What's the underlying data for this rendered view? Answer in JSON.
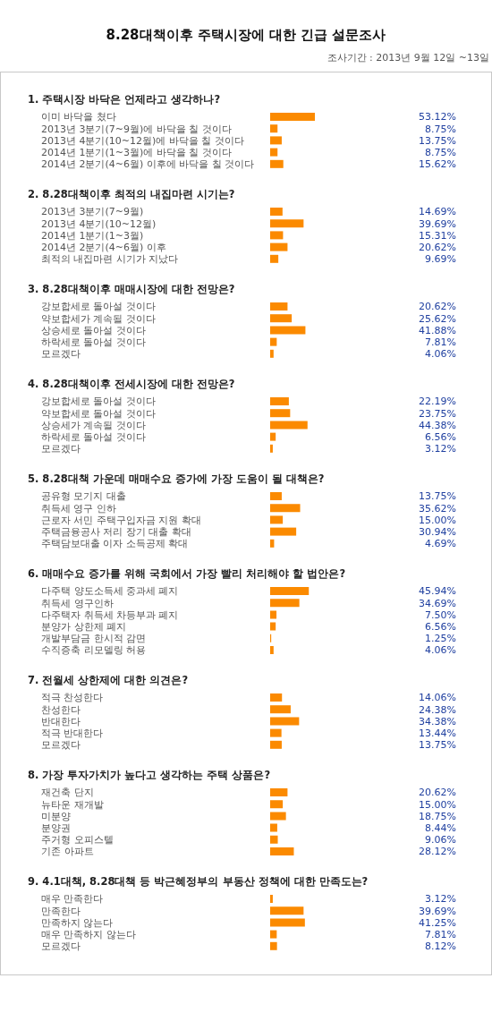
{
  "chart_data": [
    {
      "type": "other",
      "title": "8.28대책이후 주택시장에 대한 긴급 설문조사",
      "subtitle": "조사기간 : 2013년 9월 12일 ~13일"
    },
    {
      "type": "bar",
      "orientation": "horizontal",
      "title": "1. 주택시장 바닥은 언제라고 생각하나?",
      "categories": [
        "이미 바닥을 쳤다",
        "2013년 3분기(7~9월)에 바닥을 칠 것이다",
        "2013년 4분기(10~12월)에 바닥을 칠 것이다",
        "2014년 1분기(1~3월)에 바닥을 칠 것이다",
        "2014년 2분기(4~6월) 이후에 바닥을 칠 것이다"
      ],
      "values": [
        53.12,
        8.75,
        13.75,
        8.75,
        15.62
      ],
      "value_labels": [
        "53.12%",
        "8.75%",
        "13.75%",
        "8.75%",
        "15.62%"
      ],
      "color": "#fb8a00"
    },
    {
      "type": "bar",
      "orientation": "horizontal",
      "title": "2. 8.28대책이후 최적의 내집마련 시기는?",
      "categories": [
        "2013년 3분기(7~9월)",
        "2013년 4분기(10~12월)",
        "2014년 1분기(1~3월)",
        "2014년 2분기(4~6월) 이후",
        "최적의 내집마련 시기가 지났다"
      ],
      "values": [
        14.69,
        39.69,
        15.31,
        20.62,
        9.69
      ],
      "value_labels": [
        "14.69%",
        "39.69%",
        "15.31%",
        "20.62%",
        "9.69%"
      ],
      "color": "#fb8a00"
    },
    {
      "type": "bar",
      "orientation": "horizontal",
      "title": "3. 8.28대책이후 매매시장에 대한 전망은?",
      "categories": [
        "강보합세로 돌아설 것이다",
        "약보합세가 계속될 것이다",
        "상승세로 돌아설 것이다",
        "하락세로 돌아설 것이다",
        "모르겠다"
      ],
      "values": [
        20.62,
        25.62,
        41.88,
        7.81,
        4.06
      ],
      "value_labels": [
        "20.62%",
        "25.62%",
        "41.88%",
        "7.81%",
        "4.06%"
      ],
      "color": "#fb8a00"
    },
    {
      "type": "bar",
      "orientation": "horizontal",
      "title": "4. 8.28대책이후 전세시장에 대한 전망은?",
      "categories": [
        "강보합세로 돌아설 것이다",
        "약보합세로 돌아설 것이다",
        "상승세가 계속될 것이다",
        "하락세로 돌아설 것이다",
        "모르겠다"
      ],
      "values": [
        22.19,
        23.75,
        44.38,
        6.56,
        3.12
      ],
      "value_labels": [
        "22.19%",
        "23.75%",
        "44.38%",
        "6.56%",
        "3.12%"
      ],
      "color": "#fb8a00"
    },
    {
      "type": "bar",
      "orientation": "horizontal",
      "title": "5. 8.28대책 가운데 매매수요 증가에 가장 도움이 될 대책은?",
      "categories": [
        "공유형 모기지 대출",
        "취득세 영구 인하",
        "근로자 서민 주택구입자금 지원 확대",
        "주택금융공사 저리 장기 대출 확대",
        "주택담보대출 이자 소득공제 확대"
      ],
      "values": [
        13.75,
        35.62,
        15.0,
        30.94,
        4.69
      ],
      "value_labels": [
        "13.75%",
        "35.62%",
        "15.00%",
        "30.94%",
        "4.69%"
      ],
      "color": "#fb8a00"
    },
    {
      "type": "bar",
      "orientation": "horizontal",
      "title": "6. 매매수요 증가를 위해 국회에서 가장 빨리 처리해야 할 법안은?",
      "categories": [
        "다주택 양도소득세 중과세 폐지",
        "취득세 영구인하",
        "다주택자 취득세 차등부과 폐지",
        "분양가 상한제 폐지",
        "개발부담금 한시적 감면",
        "수직증축 리모델링 허용"
      ],
      "values": [
        45.94,
        34.69,
        7.5,
        6.56,
        1.25,
        4.06
      ],
      "value_labels": [
        "45.94%",
        "34.69%",
        "7.50%",
        "6.56%",
        "1.25%",
        "4.06%"
      ],
      "color": "#fb8a00"
    },
    {
      "type": "bar",
      "orientation": "horizontal",
      "title": "7. 전월세 상한제에 대한 의견은?",
      "categories": [
        "적극 찬성한다",
        "찬성한다",
        "반대한다",
        "적극 반대한다",
        "모르겠다"
      ],
      "values": [
        14.06,
        24.38,
        34.38,
        13.44,
        13.75
      ],
      "value_labels": [
        "14.06%",
        "24.38%",
        "34.38%",
        "13.44%",
        "13.75%"
      ],
      "color": "#fb8a00"
    },
    {
      "type": "bar",
      "orientation": "horizontal",
      "title": "8. 가장 투자가치가 높다고 생각하는 주택 상품은?",
      "categories": [
        "재건축 단지",
        "뉴타운 재개발",
        "미분양",
        "분양권",
        "주거형 오피스텔",
        "기존 아파트"
      ],
      "values": [
        20.62,
        15.0,
        18.75,
        8.44,
        9.06,
        28.12
      ],
      "value_labels": [
        "20.62%",
        "15.00%",
        "18.75%",
        "8.44%",
        "9.06%",
        "28.12%"
      ],
      "color": "#fb8a00"
    },
    {
      "type": "bar",
      "orientation": "horizontal",
      "title": "9. 4.1대책, 8.28대책 등 박근혜정부의 부동산 정책에 대한 만족도는?",
      "categories": [
        "매우 만족한다",
        "만족한다",
        "만족하지 않는다",
        "매우 만족하지 않는다",
        "모르겠다"
      ],
      "values": [
        3.12,
        39.69,
        41.25,
        7.81,
        8.12
      ],
      "value_labels": [
        "3.12%",
        "39.69%",
        "41.25%",
        "7.81%",
        "8.12%"
      ],
      "color": "#fb8a00"
    }
  ]
}
